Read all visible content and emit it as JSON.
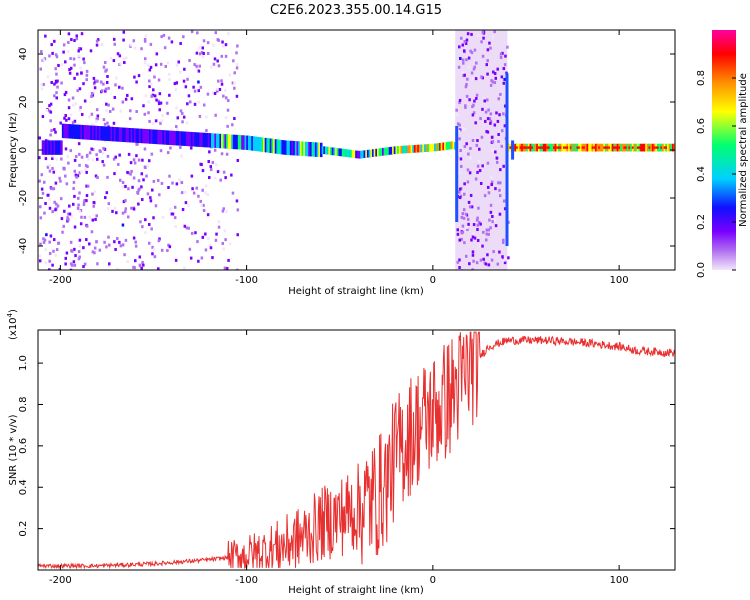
{
  "chart_data": [
    {
      "type": "heatmap",
      "title": "C2E6.2023.355.00.14.G15",
      "xlabel": "Height of straight line (km)",
      "ylabel": "Frequency (Hz)",
      "xlim": [
        -212,
        130
      ],
      "ylim": [
        -50,
        50
      ],
      "x_ticks": [
        -200,
        -100,
        0,
        100
      ],
      "y_ticks": [
        -40,
        -20,
        0,
        20,
        40
      ],
      "colorbar": {
        "label": "Normalized spectral amplitude",
        "range": [
          0,
          1
        ],
        "ticks": [
          0.0,
          0.2,
          0.4,
          0.6,
          0.8
        ],
        "colormap": [
          "#f3e6fb",
          "#b070f0",
          "#7a00ff",
          "#1010ff",
          "#00d0ff",
          "#00ff70",
          "#ffff00",
          "#ff9000",
          "#ff0000",
          "#ff00a0"
        ]
      },
      "ridge": {
        "x": [
          -200,
          -180,
          -160,
          -140,
          -120,
          -100,
          -80,
          -60,
          -40,
          -30,
          -20,
          0,
          10,
          20,
          40,
          60,
          80,
          100,
          130
        ],
        "y": [
          8,
          7,
          6,
          5,
          4,
          3,
          1,
          0,
          -2,
          -1,
          0,
          1,
          2,
          0,
          1,
          1,
          1,
          1,
          1
        ]
      }
    },
    {
      "type": "line",
      "xlabel": "Height of straight line (km)",
      "ylabel": "SNR (10 * v/v)",
      "y_multiplier": "(x10^4)",
      "xlim": [
        -212,
        130
      ],
      "ylim": [
        0.0,
        1.16
      ],
      "x_ticks": [
        -200,
        -100,
        0,
        100
      ],
      "y_ticks": [
        0.2,
        0.4,
        0.6,
        0.8,
        1.0
      ],
      "color": "#e83030",
      "series": [
        {
          "x": [
            -212,
            -180,
            -150,
            -120,
            -100,
            -90,
            -80,
            -70,
            -60,
            -50,
            -40,
            -30,
            -25,
            -20,
            -15,
            -10,
            -5,
            0,
            5,
            10,
            15,
            20,
            30,
            40,
            60,
            80,
            100,
            110,
            130
          ],
          "values": [
            0.02,
            0.02,
            0.03,
            0.05,
            0.07,
            0.09,
            0.12,
            0.16,
            0.22,
            0.26,
            0.3,
            0.35,
            0.42,
            0.55,
            0.62,
            0.68,
            0.72,
            0.76,
            0.8,
            0.85,
            0.9,
            0.98,
            1.08,
            1.11,
            1.11,
            1.1,
            1.08,
            1.06,
            1.05
          ]
        }
      ]
    }
  ]
}
